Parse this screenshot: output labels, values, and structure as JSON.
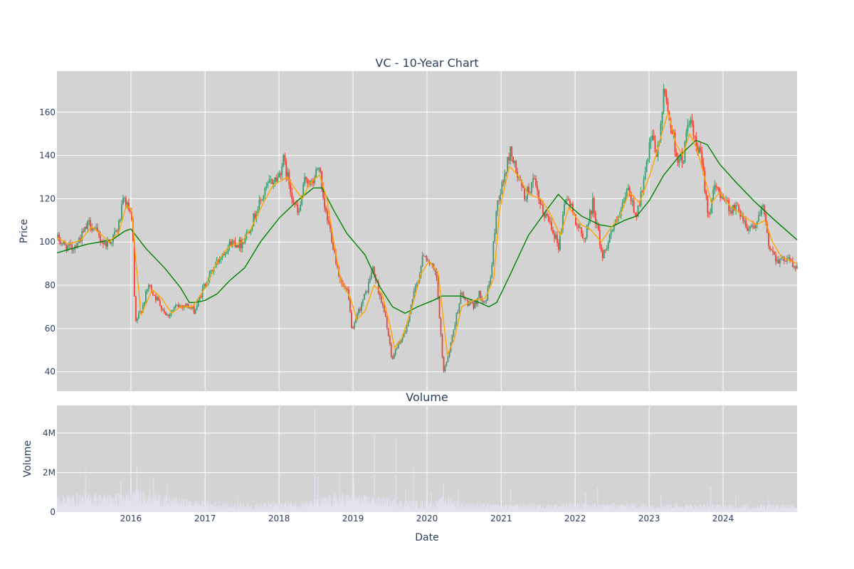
{
  "chart_data": [
    {
      "type": "candlestick",
      "title": "VC - 10-Year Chart",
      "ylabel": "Price",
      "ylim": [
        31,
        179
      ],
      "yticks": [
        40,
        60,
        80,
        100,
        120,
        140,
        160
      ],
      "xlim": [
        "2015-01-01",
        "2024-12-31"
      ],
      "grid": true,
      "up_color": "#3d9970",
      "down_color": "#ef4135",
      "ma_short_color": "#ffa500",
      "ma_long_color": "#008000",
      "price_path": [
        [
          "2015-01-02",
          102
        ],
        [
          "2015-02-15",
          98
        ],
        [
          "2015-03-20",
          97
        ],
        [
          "2015-05-01",
          102
        ],
        [
          "2015-06-15",
          109
        ],
        [
          "2015-07-20",
          104
        ],
        [
          "2015-08-25",
          99
        ],
        [
          "2015-10-01",
          101
        ],
        [
          "2015-11-01",
          106
        ],
        [
          "2015-12-01",
          120
        ],
        [
          "2016-01-05",
          112
        ],
        [
          "2016-01-15",
          100
        ],
        [
          "2016-01-25",
          62
        ],
        [
          "2016-03-01",
          70
        ],
        [
          "2016-04-01",
          80
        ],
        [
          "2016-05-15",
          73
        ],
        [
          "2016-07-01",
          66
        ],
        [
          "2016-08-15",
          70
        ],
        [
          "2016-10-01",
          71
        ],
        [
          "2016-11-15",
          68
        ],
        [
          "2017-01-01",
          80
        ],
        [
          "2017-02-15",
          88
        ],
        [
          "2017-04-01",
          95
        ],
        [
          "2017-05-15",
          100
        ],
        [
          "2017-07-01",
          99
        ],
        [
          "2017-08-15",
          107
        ],
        [
          "2017-10-01",
          118
        ],
        [
          "2017-11-15",
          127
        ],
        [
          "2018-01-01",
          130
        ],
        [
          "2018-01-25",
          138
        ],
        [
          "2018-03-15",
          120
        ],
        [
          "2018-04-10",
          112
        ],
        [
          "2018-05-15",
          130
        ],
        [
          "2018-06-15",
          126
        ],
        [
          "2018-07-20",
          136
        ],
        [
          "2018-08-10",
          118
        ],
        [
          "2018-09-15",
          105
        ],
        [
          "2018-10-15",
          90
        ],
        [
          "2018-11-10",
          80
        ],
        [
          "2018-12-10",
          76
        ],
        [
          "2019-01-01",
          58
        ],
        [
          "2019-02-01",
          68
        ],
        [
          "2019-03-15",
          78
        ],
        [
          "2019-04-10",
          88
        ],
        [
          "2019-05-15",
          76
        ],
        [
          "2019-06-20",
          62
        ],
        [
          "2019-07-15",
          45
        ],
        [
          "2019-08-10",
          52
        ],
        [
          "2019-09-20",
          58
        ],
        [
          "2019-10-20",
          72
        ],
        [
          "2019-11-25",
          84
        ],
        [
          "2019-12-20",
          95
        ],
        [
          "2020-01-20",
          90
        ],
        [
          "2020-02-20",
          84
        ],
        [
          "2020-03-10",
          60
        ],
        [
          "2020-03-25",
          40
        ],
        [
          "2020-04-20",
          48
        ],
        [
          "2020-05-20",
          62
        ],
        [
          "2020-06-20",
          76
        ],
        [
          "2020-07-20",
          72
        ],
        [
          "2020-08-20",
          70
        ],
        [
          "2020-09-20",
          76
        ],
        [
          "2020-10-20",
          72
        ],
        [
          "2020-11-15",
          85
        ],
        [
          "2020-12-15",
          118
        ],
        [
          "2021-01-20",
          130
        ],
        [
          "2021-02-20",
          143
        ],
        [
          "2021-03-20",
          132
        ],
        [
          "2021-05-01",
          121
        ],
        [
          "2021-06-15",
          128
        ],
        [
          "2021-07-20",
          115
        ],
        [
          "2021-09-01",
          110
        ],
        [
          "2021-10-15",
          98
        ],
        [
          "2021-11-20",
          122
        ],
        [
          "2022-01-01",
          112
        ],
        [
          "2022-02-15",
          100
        ],
        [
          "2022-04-01",
          118
        ],
        [
          "2022-05-20",
          93
        ],
        [
          "2022-07-01",
          105
        ],
        [
          "2022-08-15",
          112
        ],
        [
          "2022-09-20",
          125
        ],
        [
          "2022-11-01",
          112
        ],
        [
          "2022-12-10",
          128
        ],
        [
          "2023-01-15",
          148
        ],
        [
          "2023-02-15",
          140
        ],
        [
          "2023-03-20",
          170
        ],
        [
          "2023-04-20",
          155
        ],
        [
          "2023-05-20",
          140
        ],
        [
          "2023-06-20",
          137
        ],
        [
          "2023-07-20",
          158
        ],
        [
          "2023-08-20",
          145
        ],
        [
          "2023-09-20",
          138
        ],
        [
          "2023-10-25",
          112
        ],
        [
          "2023-11-25",
          125
        ],
        [
          "2024-01-01",
          122
        ],
        [
          "2024-02-10",
          115
        ],
        [
          "2024-03-20",
          116
        ],
        [
          "2024-05-01",
          107
        ],
        [
          "2024-06-15",
          108
        ],
        [
          "2024-07-20",
          116
        ],
        [
          "2024-08-15",
          99
        ],
        [
          "2024-09-20",
          93
        ],
        [
          "2024-10-20",
          91
        ],
        [
          "2024-11-20",
          94
        ],
        [
          "2024-12-15",
          88
        ],
        [
          "2024-12-31",
          89
        ]
      ],
      "ma_short": [
        [
          "2015-01-02",
          102
        ],
        [
          "2015-03-01",
          99
        ],
        [
          "2015-05-01",
          101
        ],
        [
          "2015-06-20",
          107
        ],
        [
          "2015-08-01",
          104
        ],
        [
          "2015-09-15",
          100
        ],
        [
          "2015-11-01",
          104
        ],
        [
          "2015-12-10",
          117
        ],
        [
          "2016-01-05",
          115
        ],
        [
          "2016-01-25",
          92
        ],
        [
          "2016-02-20",
          66
        ],
        [
          "2016-04-15",
          78
        ],
        [
          "2016-06-01",
          74
        ],
        [
          "2016-07-20",
          67
        ],
        [
          "2016-09-01",
          70
        ],
        [
          "2016-11-01",
          70
        ],
        [
          "2017-01-10",
          80
        ],
        [
          "2017-03-01",
          91
        ],
        [
          "2017-05-01",
          98
        ],
        [
          "2017-07-01",
          100
        ],
        [
          "2017-08-15",
          106
        ],
        [
          "2017-10-15",
          118
        ],
        [
          "2017-12-01",
          126
        ],
        [
          "2018-02-10",
          130
        ],
        [
          "2018-03-25",
          124
        ],
        [
          "2018-04-25",
          120
        ],
        [
          "2018-06-01",
          127
        ],
        [
          "2018-07-20",
          131
        ],
        [
          "2018-08-25",
          120
        ],
        [
          "2018-09-25",
          102
        ],
        [
          "2018-11-01",
          82
        ],
        [
          "2018-12-20",
          74
        ],
        [
          "2019-01-20",
          64
        ],
        [
          "2019-03-01",
          68
        ],
        [
          "2019-04-15",
          80
        ],
        [
          "2019-05-25",
          76
        ],
        [
          "2019-07-01",
          62
        ],
        [
          "2019-07-25",
          51
        ],
        [
          "2019-09-01",
          56
        ],
        [
          "2019-10-20",
          70
        ],
        [
          "2019-12-01",
          85
        ],
        [
          "2020-01-10",
          91
        ],
        [
          "2020-02-25",
          86
        ],
        [
          "2020-04-10",
          48
        ],
        [
          "2020-05-15",
          55
        ],
        [
          "2020-06-20",
          70
        ],
        [
          "2020-08-15",
          73
        ],
        [
          "2020-10-15",
          74
        ],
        [
          "2020-11-25",
          83
        ],
        [
          "2020-12-25",
          115
        ],
        [
          "2021-02-10",
          135
        ],
        [
          "2021-04-01",
          130
        ],
        [
          "2021-05-15",
          122
        ],
        [
          "2021-07-15",
          120
        ],
        [
          "2021-09-01",
          113
        ],
        [
          "2021-10-20",
          103
        ],
        [
          "2021-12-01",
          116
        ],
        [
          "2022-02-01",
          108
        ],
        [
          "2022-03-15",
          106
        ],
        [
          "2022-05-10",
          100
        ],
        [
          "2022-06-15",
          105
        ],
        [
          "2022-08-10",
          112
        ],
        [
          "2022-09-25",
          123
        ],
        [
          "2022-11-15",
          118
        ],
        [
          "2023-01-01",
          130
        ],
        [
          "2023-02-10",
          142
        ],
        [
          "2023-03-10",
          152
        ],
        [
          "2023-04-05",
          160
        ],
        [
          "2023-05-15",
          145
        ],
        [
          "2023-06-15",
          140
        ],
        [
          "2023-07-20",
          150
        ],
        [
          "2023-08-25",
          143
        ],
        [
          "2023-10-01",
          130
        ],
        [
          "2023-11-05",
          118
        ],
        [
          "2023-12-15",
          123
        ],
        [
          "2024-02-01",
          117
        ],
        [
          "2024-04-10",
          112
        ],
        [
          "2024-06-15",
          108
        ],
        [
          "2024-07-25",
          110
        ],
        [
          "2024-09-01",
          100
        ],
        [
          "2024-10-15",
          93
        ],
        [
          "2024-12-31",
          90
        ]
      ],
      "ma_long": [
        [
          "2015-01-02",
          95
        ],
        [
          "2015-06-01",
          99
        ],
        [
          "2015-10-01",
          101
        ],
        [
          "2015-12-01",
          105
        ],
        [
          "2016-01-01",
          106
        ],
        [
          "2016-03-15",
          97
        ],
        [
          "2016-06-15",
          88
        ],
        [
          "2016-09-01",
          79
        ],
        [
          "2016-10-15",
          72
        ],
        [
          "2016-11-15",
          72
        ],
        [
          "2017-01-01",
          73
        ],
        [
          "2017-03-01",
          76
        ],
        [
          "2017-05-01",
          82
        ],
        [
          "2017-07-15",
          88
        ],
        [
          "2017-10-01",
          100
        ],
        [
          "2018-01-01",
          111
        ],
        [
          "2018-04-01",
          119
        ],
        [
          "2018-06-20",
          125
        ],
        [
          "2018-08-01",
          125
        ],
        [
          "2018-10-01",
          114
        ],
        [
          "2018-12-01",
          104
        ],
        [
          "2019-03-01",
          94
        ],
        [
          "2019-05-15",
          79
        ],
        [
          "2019-07-15",
          70
        ],
        [
          "2019-09-15",
          67
        ],
        [
          "2019-11-15",
          70
        ],
        [
          "2020-02-01",
          73
        ],
        [
          "2020-03-15",
          75
        ],
        [
          "2020-06-15",
          75
        ],
        [
          "2020-09-15",
          72
        ],
        [
          "2020-11-01",
          70
        ],
        [
          "2020-12-10",
          72
        ],
        [
          "2021-02-15",
          85
        ],
        [
          "2021-05-15",
          103
        ],
        [
          "2021-08-15",
          115
        ],
        [
          "2021-10-10",
          122
        ],
        [
          "2021-12-01",
          117
        ],
        [
          "2022-02-01",
          112
        ],
        [
          "2022-05-01",
          108
        ],
        [
          "2022-07-01",
          107
        ],
        [
          "2022-09-01",
          110
        ],
        [
          "2022-11-01",
          112
        ],
        [
          "2023-01-01",
          119
        ],
        [
          "2023-03-15",
          131
        ],
        [
          "2023-06-01",
          140
        ],
        [
          "2023-08-20",
          147
        ],
        [
          "2023-10-15",
          145
        ],
        [
          "2023-12-15",
          136
        ],
        [
          "2024-03-01",
          128
        ],
        [
          "2024-06-01",
          119
        ],
        [
          "2024-09-01",
          111
        ],
        [
          "2024-12-31",
          101
        ]
      ]
    },
    {
      "type": "bar",
      "title": "Volume",
      "xlabel": "Date",
      "ylabel": "Volume",
      "ylim": [
        0,
        5400000
      ],
      "yticks": [
        0,
        2000000,
        4000000
      ],
      "ytick_labels": [
        "0",
        "2M",
        "4M"
      ],
      "xticks": [
        "2016",
        "2017",
        "2018",
        "2019",
        "2020",
        "2021",
        "2022",
        "2023",
        "2024"
      ],
      "bar_color": "#e2e2ef",
      "baseline_path": [
        [
          "2015-01-02",
          650000
        ],
        [
          "2015-12-01",
          700000
        ],
        [
          "2016-03-01",
          900000
        ],
        [
          "2016-07-01",
          550000
        ],
        [
          "2017-01-01",
          400000
        ],
        [
          "2017-08-01",
          300000
        ],
        [
          "2018-01-01",
          380000
        ],
        [
          "2018-07-01",
          450000
        ],
        [
          "2018-10-01",
          700000
        ],
        [
          "2019-04-01",
          600000
        ],
        [
          "2019-09-01",
          450000
        ],
        [
          "2020-02-01",
          380000
        ],
        [
          "2020-04-01",
          600000
        ],
        [
          "2020-07-01",
          350000
        ],
        [
          "2021-01-01",
          300000
        ],
        [
          "2022-01-01",
          320000
        ],
        [
          "2023-01-01",
          330000
        ],
        [
          "2024-01-01",
          280000
        ],
        [
          "2024-12-31",
          300000
        ]
      ],
      "spikes": [
        [
          "2015-05-20",
          2200000
        ],
        [
          "2015-11-10",
          1600000
        ],
        [
          "2016-01-28",
          2300000
        ],
        [
          "2016-04-20",
          1800000
        ],
        [
          "2016-06-25",
          1400000
        ],
        [
          "2017-06-10",
          800000
        ],
        [
          "2018-06-25",
          5200000
        ],
        [
          "2018-07-10",
          1800000
        ],
        [
          "2018-10-25",
          2000000
        ],
        [
          "2019-01-05",
          1500000
        ],
        [
          "2019-04-15",
          4100000
        ],
        [
          "2019-07-30",
          3700000
        ],
        [
          "2019-09-15",
          1100000
        ],
        [
          "2019-10-25",
          2300000
        ],
        [
          "2020-01-20",
          1000000
        ],
        [
          "2020-03-20",
          1500000
        ],
        [
          "2020-06-01",
          1100000
        ],
        [
          "2021-02-15",
          1200000
        ],
        [
          "2022-02-20",
          1000000
        ],
        [
          "2022-04-20",
          1300000
        ],
        [
          "2023-02-25",
          900000
        ],
        [
          "2023-10-30",
          1300000
        ],
        [
          "2024-03-01",
          800000
        ],
        [
          "2024-08-10",
          700000
        ]
      ]
    }
  ]
}
